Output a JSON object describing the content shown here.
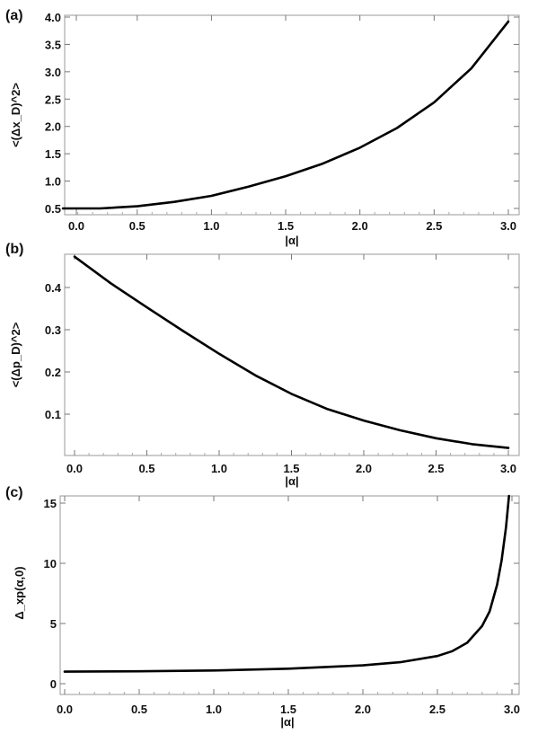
{
  "chart_data": [
    {
      "type": "line",
      "panel_label": "(a)",
      "xlabel": "|α|",
      "ylabel": "<(Δx_D)^2>",
      "xlim": [
        0,
        3.0
      ],
      "ylim": [
        0.42,
        4.0
      ],
      "xticks": [
        "0.0",
        "0.5",
        "1.0",
        "1.5",
        "2.0",
        "2.5",
        "3.0"
      ],
      "yticks": [
        "0.5",
        "1.0",
        "1.5",
        "2.0",
        "2.5",
        "3.0",
        "3.5",
        "4.0"
      ],
      "grid": false,
      "series": [
        {
          "x": [
            0.0,
            0.25,
            0.5,
            0.75,
            1.0,
            1.25,
            1.5,
            1.75,
            2.0,
            2.25,
            2.5,
            2.75,
            3.0
          ],
          "values": [
            0.5,
            0.5,
            0.54,
            0.62,
            0.73,
            0.9,
            1.09,
            1.32,
            1.61,
            1.97,
            2.44,
            3.06,
            3.92
          ]
        }
      ]
    },
    {
      "type": "line",
      "panel_label": "(b)",
      "xlabel": "|α|",
      "ylabel": "<(Δp_D)^2>",
      "xlim": [
        0,
        3.0
      ],
      "ylim": [
        0.01,
        0.48
      ],
      "xticks": [
        "0.0",
        "0.5",
        "1.0",
        "1.5",
        "2.0",
        "2.5",
        "3.0"
      ],
      "yticks": [
        "0.1",
        "0.2",
        "0.3",
        "0.4"
      ],
      "grid": false,
      "series": [
        {
          "x": [
            0.0,
            0.25,
            0.5,
            0.75,
            1.0,
            1.25,
            1.5,
            1.75,
            2.0,
            2.25,
            2.5,
            2.75,
            3.0
          ],
          "values": [
            0.473,
            0.41,
            0.353,
            0.297,
            0.243,
            0.192,
            0.148,
            0.112,
            0.085,
            0.062,
            0.043,
            0.029,
            0.02
          ]
        }
      ]
    },
    {
      "type": "line",
      "panel_label": "(c)",
      "xlabel": "|α|",
      "ylabel": "Δ_xp(α,0)",
      "xlim": [
        0,
        3.0
      ],
      "ylim": [
        -0.4,
        15.6
      ],
      "xticks": [
        "0.0",
        "0.5",
        "1.0",
        "1.5",
        "2.0",
        "2.5",
        "3.0"
      ],
      "yticks": [
        "0",
        "5",
        "10",
        "15"
      ],
      "grid": false,
      "series": [
        {
          "x": [
            0.0,
            0.5,
            1.0,
            1.5,
            2.0,
            2.25,
            2.5,
            2.6,
            2.7,
            2.8,
            2.85,
            2.9,
            2.93,
            2.96,
            2.98
          ],
          "values": [
            1.0,
            1.03,
            1.1,
            1.25,
            1.52,
            1.78,
            2.3,
            2.7,
            3.4,
            4.8,
            6.0,
            8.2,
            10.2,
            13.0,
            15.6
          ]
        }
      ]
    }
  ]
}
